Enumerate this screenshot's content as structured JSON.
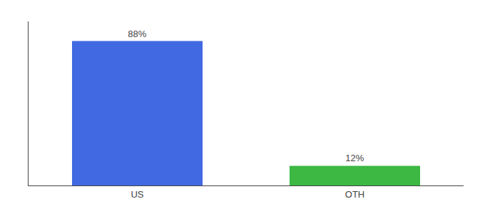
{
  "chart_data": {
    "type": "bar",
    "categories": [
      "US",
      "OTH"
    ],
    "values": [
      88,
      12
    ],
    "value_labels": [
      "88%",
      "12%"
    ],
    "colors": [
      "#4169e1",
      "#3cb843"
    ],
    "ylim": [
      0,
      100
    ],
    "grid": false,
    "data_labels": true,
    "tick_labels": "x"
  }
}
